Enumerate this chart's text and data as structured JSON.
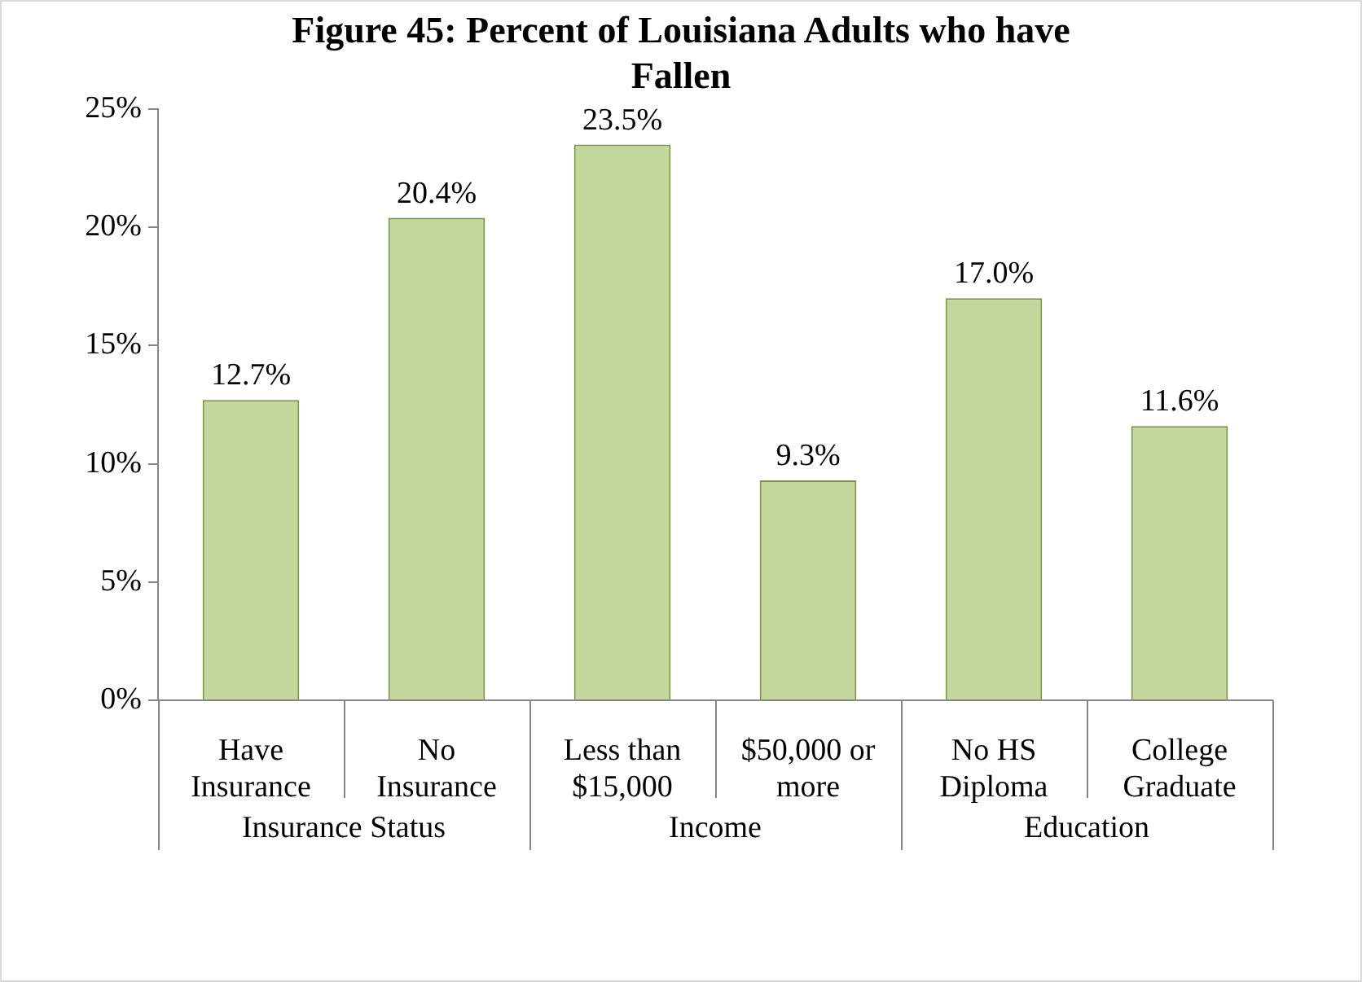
{
  "chart_data": {
    "type": "bar",
    "title": "Figure 45: Percent of Louisiana Adults who have Fallen",
    "categories": [
      "Have Insurance",
      "No Insurance",
      "Less than $15,000",
      "$50,000 or more",
      "No HS Diploma",
      "College Graduate"
    ],
    "values": [
      12.7,
      20.4,
      23.5,
      9.3,
      17.0,
      11.6
    ],
    "value_labels": [
      "12.7%",
      "20.4%",
      "23.5%",
      "9.3%",
      "17.0%",
      "11.6%"
    ],
    "color": "#c3d69b",
    "annotations": [
      "Insurance Status",
      "Income",
      "Education"
    ],
    "ylim": [
      0,
      25
    ],
    "yticks": [
      {
        "value": 0,
        "label": "0%"
      },
      {
        "value": 5,
        "label": "5%"
      },
      {
        "value": 10,
        "label": "10%"
      },
      {
        "value": 15,
        "label": "15%"
      },
      {
        "value": 20,
        "label": "20%"
      },
      {
        "value": 25,
        "label": "25%"
      }
    ],
    "grid": false,
    "legend": false
  }
}
